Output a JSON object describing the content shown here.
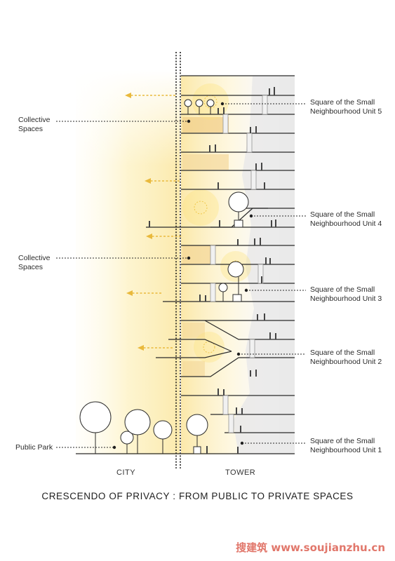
{
  "title": "CRESCENDO OF PRIVACY : FROM PUBLIC TO PRIVATE SPACES",
  "zones": {
    "city": "CITY",
    "tower": "TOWER"
  },
  "left_labels": {
    "collective_1_line1": "Collective",
    "collective_1_line2": "Spaces",
    "collective_2_line1": "Collective",
    "collective_2_line2": "Spaces",
    "public_park": "Public Park"
  },
  "unit_labels": [
    {
      "line1": "Square of the Small",
      "line2": "Neighbourhood Unit 5"
    },
    {
      "line1": "Square of the Small",
      "line2": "Neighbourhood Unit 4"
    },
    {
      "line1": "Square of the Small",
      "line2": "Neighbourhood Unit 3"
    },
    {
      "line1": "Square of the Small",
      "line2": "Neighbourhood Unit 2"
    },
    {
      "line1": "Square of the Small",
      "line2": "Neighbourhood Unit 1"
    }
  ],
  "watermark": "搜建筑 www.soujianzhu.cn",
  "colors": {
    "glow": "#f7e27a",
    "warm_floor": "#f3d59a",
    "line": "#2a2a2a",
    "arrow": "#e9b93c",
    "grey_panel": "#e8e8e8"
  }
}
